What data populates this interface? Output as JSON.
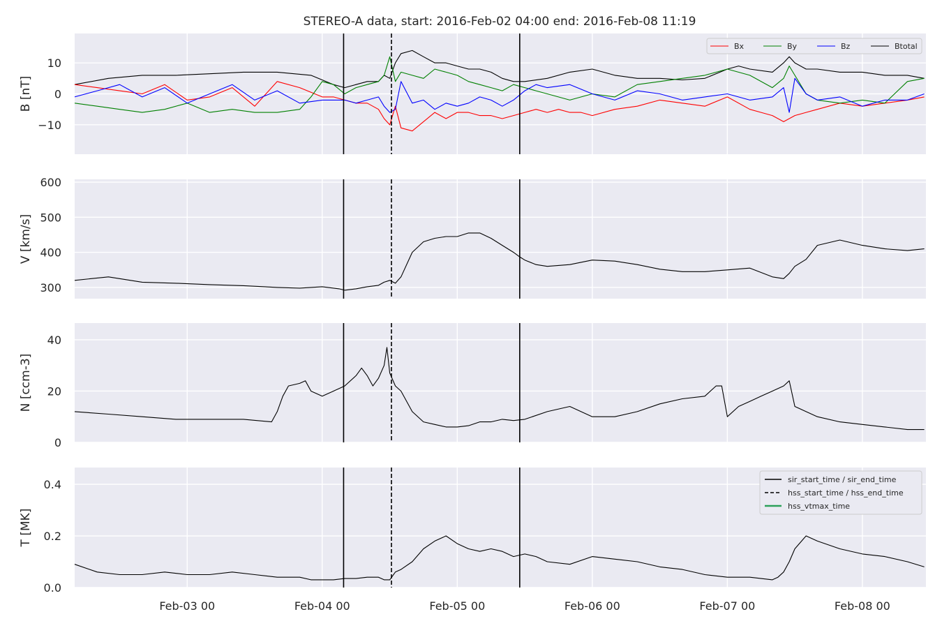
{
  "chart_data": {
    "type": "line",
    "title": "STEREO-A data, start: 2016-Feb-02 04:00  end: 2016-Feb-08 11:19",
    "x_range_hours": [
      0,
      151.3
    ],
    "x_ticks": [
      {
        "label": "Feb-03 00",
        "hour": 20
      },
      {
        "label": "Feb-04 00",
        "hour": 44
      },
      {
        "label": "Feb-05 00",
        "hour": 68
      },
      {
        "label": "Feb-06 00",
        "hour": 92
      },
      {
        "label": "Feb-07 00",
        "hour": 116
      },
      {
        "label": "Feb-08 00",
        "hour": 140
      }
    ],
    "events": {
      "sir_start_hour": 47.8,
      "hss_start_hour": 56.3,
      "sir_end_hour": 79.1
    },
    "panels": [
      {
        "id": "B",
        "ylabel": "B [nT]",
        "ylim": [
          -19.5,
          19.5
        ],
        "yticks": [
          {
            "v": 10,
            "label": "10"
          },
          {
            "v": 0,
            "label": "0"
          },
          {
            "v": -10,
            "label": "−10"
          }
        ],
        "legend": [
          "Bx",
          "By",
          "Bz",
          "Btotal"
        ],
        "series": [
          {
            "name": "Btotal",
            "color": "#000000",
            "x": [
              0,
              6,
              12,
              18,
              24,
              30,
              36,
              42,
              46,
              48,
              50,
              52,
              54,
              55,
              56,
              57,
              58,
              60,
              62,
              64,
              66,
              68,
              70,
              72,
              74,
              76,
              78,
              80,
              84,
              88,
              92,
              96,
              100,
              104,
              108,
              112,
              116,
              118,
              120,
              124,
              126,
              127,
              128,
              130,
              132,
              136,
              140,
              144,
              148,
              151
            ],
            "y": [
              3,
              5,
              6,
              6,
              6.5,
              7,
              7,
              6,
              3,
              2,
              3,
              4,
              4,
              6,
              5,
              10,
              13,
              14,
              12,
              10,
              10,
              9,
              8,
              8,
              7,
              5,
              4,
              4,
              5,
              7,
              8,
              6,
              5,
              5,
              4.5,
              5,
              8,
              9,
              8,
              7,
              10,
              12,
              10,
              8,
              8,
              7,
              7,
              6,
              6,
              5
            ]
          },
          {
            "name": "Bx",
            "color": "#ff0000",
            "x": [
              0,
              4,
              8,
              12,
              16,
              20,
              24,
              28,
              32,
              36,
              40,
              44,
              46,
              48,
              50,
              52,
              54,
              55,
              56,
              57,
              58,
              60,
              62,
              64,
              66,
              68,
              70,
              72,
              74,
              76,
              78,
              80,
              82,
              84,
              86,
              88,
              90,
              92,
              96,
              100,
              104,
              108,
              112,
              116,
              120,
              122,
              124,
              126,
              127,
              128,
              130,
              132,
              136,
              140,
              144,
              148,
              151
            ],
            "y": [
              3,
              2,
              1,
              0,
              3,
              -2,
              -1,
              2,
              -4,
              4,
              2,
              -1,
              -1,
              -2,
              -3,
              -3,
              -5,
              -8,
              -10,
              -4,
              -11,
              -12,
              -9,
              -6,
              -8,
              -6,
              -6,
              -7,
              -7,
              -8,
              -7,
              -6,
              -5,
              -6,
              -5,
              -6,
              -6,
              -7,
              -5,
              -4,
              -2,
              -3,
              -4,
              -1,
              -5,
              -6,
              -7,
              -9,
              -8,
              -7,
              -6,
              -5,
              -3,
              -4,
              -3,
              -2,
              -1
            ]
          },
          {
            "name": "By",
            "color": "#008000",
            "x": [
              0,
              4,
              8,
              12,
              16,
              20,
              24,
              28,
              32,
              36,
              40,
              42,
              44,
              46,
              48,
              50,
              52,
              54,
              55,
              56,
              57,
              58,
              60,
              62,
              64,
              66,
              68,
              70,
              72,
              74,
              76,
              78,
              80,
              82,
              84,
              88,
              92,
              96,
              100,
              104,
              108,
              112,
              116,
              120,
              124,
              126,
              127,
              128,
              130,
              132,
              136,
              140,
              144,
              148,
              151
            ],
            "y": [
              -3,
              -4,
              -5,
              -6,
              -5,
              -3,
              -6,
              -5,
              -6,
              -6,
              -5,
              -1,
              4,
              3,
              0,
              2,
              3,
              4,
              6,
              12,
              4,
              7,
              6,
              5,
              8,
              7,
              6,
              4,
              3,
              2,
              1,
              3,
              2,
              1,
              0,
              -2,
              0,
              -1,
              3,
              4,
              5,
              6,
              8,
              6,
              2,
              5,
              9,
              6,
              0,
              -2,
              -3,
              -2,
              -3,
              4,
              5
            ]
          },
          {
            "name": "Bz",
            "color": "#0000ff",
            "x": [
              0,
              4,
              8,
              12,
              16,
              20,
              24,
              28,
              32,
              36,
              40,
              44,
              48,
              50,
              52,
              54,
              55,
              56,
              57,
              58,
              60,
              62,
              64,
              66,
              68,
              70,
              72,
              74,
              76,
              78,
              80,
              82,
              84,
              88,
              92,
              96,
              100,
              104,
              108,
              112,
              116,
              120,
              124,
              126,
              127,
              128,
              130,
              132,
              136,
              140,
              144,
              148,
              151
            ],
            "y": [
              -1,
              1,
              3,
              -1,
              2,
              -3,
              0,
              3,
              -2,
              1,
              -3,
              -2,
              -2,
              -3,
              -2,
              -1,
              -4,
              -6,
              -5,
              4,
              -3,
              -2,
              -5,
              -3,
              -4,
              -3,
              -1,
              -2,
              -4,
              -2,
              1,
              3,
              2,
              3,
              0,
              -2,
              1,
              0,
              -2,
              -1,
              0,
              -2,
              -1,
              2,
              -6,
              5,
              0,
              -2,
              -1,
              -4,
              -2,
              -2,
              0
            ]
          }
        ]
      },
      {
        "id": "V",
        "ylabel": "V [km/s]",
        "ylim": [
          268,
          608
        ],
        "yticks": [
          {
            "v": 600,
            "label": "600"
          },
          {
            "v": 500,
            "label": "500"
          },
          {
            "v": 400,
            "label": "400"
          },
          {
            "v": 300,
            "label": "300"
          }
        ],
        "series": [
          {
            "name": "V",
            "color": "#000000",
            "x": [
              0,
              6,
              12,
              18,
              24,
              30,
              36,
              40,
              44,
              47,
              48,
              50,
              52,
              54,
              55,
              56,
              57,
              58,
              60,
              62,
              64,
              66,
              68,
              70,
              72,
              74,
              76,
              78,
              79,
              80,
              82,
              84,
              88,
              92,
              96,
              100,
              104,
              108,
              112,
              116,
              120,
              124,
              126,
              127,
              128,
              130,
              132,
              136,
              140,
              144,
              148,
              151
            ],
            "y": [
              320,
              330,
              315,
              312,
              308,
              305,
              300,
              298,
              302,
              296,
              292,
              296,
              302,
              306,
              315,
              320,
              312,
              330,
              400,
              430,
              440,
              445,
              445,
              455,
              455,
              440,
              420,
              400,
              388,
              378,
              365,
              360,
              365,
              378,
              375,
              365,
              352,
              345,
              345,
              350,
              355,
              330,
              325,
              340,
              360,
              380,
              420,
              435,
              420,
              410,
              405,
              410
            ]
          }
        ]
      },
      {
        "id": "N",
        "ylabel": "N [ccm-3]",
        "ylim": [
          0,
          46.5
        ],
        "yticks": [
          {
            "v": 40,
            "label": "40"
          },
          {
            "v": 20,
            "label": "20"
          },
          {
            "v": 0,
            "label": "0"
          }
        ],
        "series": [
          {
            "name": "N",
            "color": "#000000",
            "x": [
              0,
              6,
              12,
              18,
              24,
              30,
              35,
              36,
              37,
              38,
              40,
              41,
              42,
              43,
              44,
              46,
              48,
              50,
              51,
              52,
              53,
              54,
              55,
              55.5,
              56,
              57,
              58,
              60,
              62,
              64,
              66,
              68,
              70,
              72,
              74,
              76,
              78,
              80,
              84,
              88,
              92,
              96,
              100,
              104,
              108,
              112,
              114,
              115,
              116,
              118,
              120,
              122,
              124,
              126,
              127,
              128,
              130,
              132,
              136,
              140,
              144,
              148,
              151
            ],
            "y": [
              12,
              11,
              10,
              9,
              9,
              9,
              8,
              12,
              18,
              22,
              23,
              24,
              20,
              19,
              18,
              20,
              22,
              26,
              29,
              26,
              22,
              25,
              30,
              37,
              27,
              22,
              20,
              12,
              8,
              7,
              6,
              6,
              6.5,
              8,
              8,
              9,
              8.5,
              9,
              12,
              14,
              10,
              10,
              12,
              15,
              17,
              18,
              22,
              22,
              10,
              14,
              16,
              18,
              20,
              22,
              24,
              14,
              12,
              10,
              8,
              7,
              6,
              5,
              5
            ]
          }
        ]
      },
      {
        "id": "T",
        "ylabel": "T [MK]",
        "ylim": [
          0,
          0.465
        ],
        "yticks": [
          {
            "v": 0.4,
            "label": "0.4"
          },
          {
            "v": 0.2,
            "label": "0.2"
          },
          {
            "v": 0.0,
            "label": "0.0"
          }
        ],
        "legend": [
          "sir_start_time / sir_end_time",
          "hss_start_time / hss_end_time",
          "hss_vtmax_time"
        ],
        "legend_colors": [
          "#000000",
          "#000000",
          "#2ca05a"
        ],
        "series": [
          {
            "name": "T",
            "color": "#000000",
            "x": [
              0,
              4,
              8,
              12,
              16,
              20,
              24,
              28,
              32,
              36,
              40,
              42,
              44,
              46,
              48,
              50,
              52,
              54,
              55,
              56,
              57,
              58,
              60,
              62,
              64,
              66,
              68,
              70,
              72,
              74,
              76,
              78,
              80,
              82,
              84,
              88,
              92,
              96,
              100,
              104,
              108,
              112,
              116,
              120,
              124,
              125,
              126,
              127,
              128,
              130,
              132,
              136,
              140,
              144,
              148,
              151
            ],
            "y": [
              0.09,
              0.06,
              0.05,
              0.05,
              0.06,
              0.05,
              0.05,
              0.06,
              0.05,
              0.04,
              0.04,
              0.03,
              0.03,
              0.03,
              0.035,
              0.035,
              0.04,
              0.04,
              0.03,
              0.03,
              0.06,
              0.07,
              0.1,
              0.15,
              0.18,
              0.2,
              0.17,
              0.15,
              0.14,
              0.15,
              0.14,
              0.12,
              0.13,
              0.12,
              0.1,
              0.09,
              0.12,
              0.11,
              0.1,
              0.08,
              0.07,
              0.05,
              0.04,
              0.04,
              0.03,
              0.04,
              0.06,
              0.1,
              0.15,
              0.2,
              0.18,
              0.15,
              0.13,
              0.12,
              0.1,
              0.08
            ]
          }
        ]
      }
    ]
  }
}
